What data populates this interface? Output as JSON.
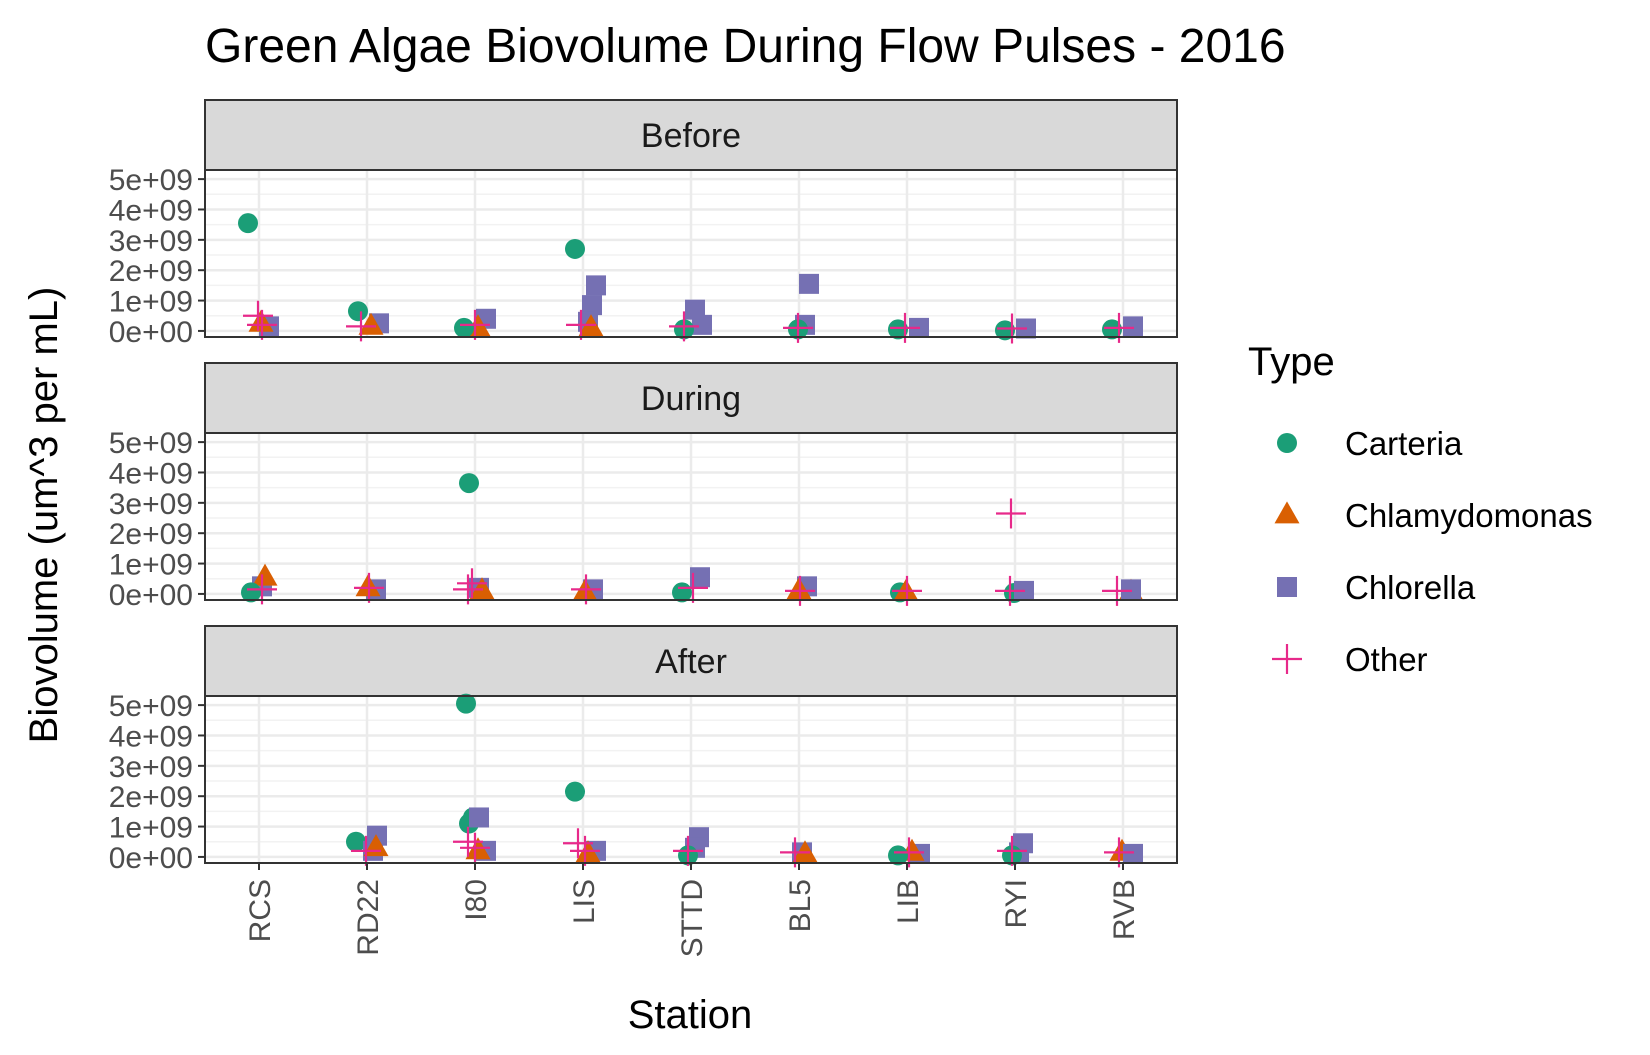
{
  "chart_data": {
    "type": "scatter",
    "title": "Green Algae Biovolume During Flow Pulses - 2016",
    "xlabel": "Station",
    "ylabel": "Biovolume (um^3 per mL)",
    "categories": [
      "RCS",
      "RD22",
      "I80",
      "LIS",
      "STTD",
      "BL5",
      "LIB",
      "RYI",
      "RVB"
    ],
    "ylim": [
      -200000000,
      5300000000
    ],
    "y_ticks": [
      0,
      1000000000,
      2000000000,
      3000000000,
      4000000000,
      5000000000
    ],
    "y_tick_labels": [
      "0e+00",
      "1e+09",
      "2e+09",
      "3e+09",
      "4e+09",
      "5e+09"
    ],
    "grid": true,
    "legend": {
      "title": "Type",
      "position": "right",
      "entries": [
        {
          "name": "Carteria",
          "shape": "circle",
          "color": "#1B9E77"
        },
        {
          "name": "Chlamydomonas",
          "shape": "triangle",
          "color": "#D95F02"
        },
        {
          "name": "Chlorella",
          "shape": "square",
          "color": "#7570B3"
        },
        {
          "name": "Other",
          "shape": "plus",
          "color": "#E7298A"
        }
      ]
    },
    "panels": [
      {
        "label": "Before",
        "points": [
          {
            "station": "RCS",
            "type": "Carteria",
            "value": 3550000000
          },
          {
            "station": "RCS",
            "type": "Chlorella",
            "value": 150000000
          },
          {
            "station": "RCS",
            "type": "Chlamydomonas",
            "value": 250000000
          },
          {
            "station": "RCS",
            "type": "Other",
            "value": 200000000
          },
          {
            "station": "RCS",
            "type": "Other",
            "value": 500000000
          },
          {
            "station": "RD22",
            "type": "Carteria",
            "value": 650000000
          },
          {
            "station": "RD22",
            "type": "Chlorella",
            "value": 250000000
          },
          {
            "station": "RD22",
            "type": "Chlamydomonas",
            "value": 150000000
          },
          {
            "station": "RD22",
            "type": "Other",
            "value": 150000000
          },
          {
            "station": "I80",
            "type": "Chlorella",
            "value": 400000000
          },
          {
            "station": "I80",
            "type": "Chlamydomonas",
            "value": 100000000
          },
          {
            "station": "I80",
            "type": "Carteria",
            "value": 100000000
          },
          {
            "station": "I80",
            "type": "Other",
            "value": 200000000
          },
          {
            "station": "LIS",
            "type": "Carteria",
            "value": 2700000000
          },
          {
            "station": "LIS",
            "type": "Chlorella",
            "value": 1500000000
          },
          {
            "station": "LIS",
            "type": "Chlorella",
            "value": 850000000
          },
          {
            "station": "LIS",
            "type": "Chlorella",
            "value": 300000000
          },
          {
            "station": "LIS",
            "type": "Chlamydomonas",
            "value": 100000000
          },
          {
            "station": "LIS",
            "type": "Other",
            "value": 200000000
          },
          {
            "station": "STTD",
            "type": "Chlorella",
            "value": 700000000
          },
          {
            "station": "STTD",
            "type": "Chlorella",
            "value": 200000000
          },
          {
            "station": "STTD",
            "type": "Carteria",
            "value": 50000000
          },
          {
            "station": "STTD",
            "type": "Other",
            "value": 150000000
          },
          {
            "station": "BL5",
            "type": "Chlorella",
            "value": 1550000000
          },
          {
            "station": "BL5",
            "type": "Chlorella",
            "value": 200000000
          },
          {
            "station": "BL5",
            "type": "Carteria",
            "value": 50000000
          },
          {
            "station": "BL5",
            "type": "Other",
            "value": 100000000
          },
          {
            "station": "LIB",
            "type": "Carteria",
            "value": 50000000
          },
          {
            "station": "LIB",
            "type": "Chlorella",
            "value": 100000000
          },
          {
            "station": "LIB",
            "type": "Other",
            "value": 100000000
          },
          {
            "station": "RYI",
            "type": "Carteria",
            "value": 20000000
          },
          {
            "station": "RYI",
            "type": "Chlorella",
            "value": 80000000
          },
          {
            "station": "RYI",
            "type": "Other",
            "value": 80000000
          },
          {
            "station": "RVB",
            "type": "Carteria",
            "value": 50000000
          },
          {
            "station": "RVB",
            "type": "Chlorella",
            "value": 150000000
          },
          {
            "station": "RVB",
            "type": "Other",
            "value": 100000000
          }
        ]
      },
      {
        "label": "During",
        "points": [
          {
            "station": "RCS",
            "type": "Chlorella",
            "value": 250000000
          },
          {
            "station": "RCS",
            "type": "Chlamydomonas",
            "value": 550000000
          },
          {
            "station": "RCS",
            "type": "Carteria",
            "value": 50000000
          },
          {
            "station": "RCS",
            "type": "Other",
            "value": 150000000
          },
          {
            "station": "RD22",
            "type": "Chlorella",
            "value": 150000000
          },
          {
            "station": "RD22",
            "type": "Chlamydomonas",
            "value": 200000000
          },
          {
            "station": "RD22",
            "type": "Other",
            "value": 200000000
          },
          {
            "station": "I80",
            "type": "Carteria",
            "value": 3650000000
          },
          {
            "station": "I80",
            "type": "Chlorella",
            "value": 200000000
          },
          {
            "station": "I80",
            "type": "Chlamydomonas",
            "value": 100000000
          },
          {
            "station": "I80",
            "type": "Other",
            "value": 350000000
          },
          {
            "station": "I80",
            "type": "Other",
            "value": 150000000
          },
          {
            "station": "LIS",
            "type": "Chlorella",
            "value": 150000000
          },
          {
            "station": "LIS",
            "type": "Chlamydomonas",
            "value": 50000000
          },
          {
            "station": "LIS",
            "type": "Other",
            "value": 150000000
          },
          {
            "station": "STTD",
            "type": "Chlorella",
            "value": 550000000
          },
          {
            "station": "STTD",
            "type": "Carteria",
            "value": 50000000
          },
          {
            "station": "STTD",
            "type": "Other",
            "value": 200000000
          },
          {
            "station": "BL5",
            "type": "Chlorella",
            "value": 250000000
          },
          {
            "station": "BL5",
            "type": "Chlamydomonas",
            "value": 100000000
          },
          {
            "station": "BL5",
            "type": "Other",
            "value": 100000000
          },
          {
            "station": "LIB",
            "type": "Carteria",
            "value": 50000000
          },
          {
            "station": "LIB",
            "type": "Chlamydomonas",
            "value": 50000000
          },
          {
            "station": "LIB",
            "type": "Other",
            "value": 100000000
          },
          {
            "station": "RYI",
            "type": "Other",
            "value": 2650000000
          },
          {
            "station": "RYI",
            "type": "Carteria",
            "value": 30000000
          },
          {
            "station": "RYI",
            "type": "Chlorella",
            "value": 100000000
          },
          {
            "station": "RYI",
            "type": "Other",
            "value": 100000000
          },
          {
            "station": "RVB",
            "type": "Chlamydomonas",
            "value": 50000000
          },
          {
            "station": "RVB",
            "type": "Chlorella",
            "value": 150000000
          },
          {
            "station": "RVB",
            "type": "Other",
            "value": 100000000
          }
        ]
      },
      {
        "label": "After",
        "points": [
          {
            "station": "RD22",
            "type": "Carteria",
            "value": 500000000
          },
          {
            "station": "RD22",
            "type": "Chlorella",
            "value": 700000000
          },
          {
            "station": "RD22",
            "type": "Chlorella",
            "value": 200000000
          },
          {
            "station": "RD22",
            "type": "Chlamydomonas",
            "value": 300000000
          },
          {
            "station": "RD22",
            "type": "Other",
            "value": 200000000
          },
          {
            "station": "I80",
            "type": "Carteria",
            "value": 5050000000
          },
          {
            "station": "I80",
            "type": "Carteria",
            "value": 1300000000
          },
          {
            "station": "I80",
            "type": "Carteria",
            "value": 1100000000
          },
          {
            "station": "I80",
            "type": "Chlorella",
            "value": 1300000000
          },
          {
            "station": "I80",
            "type": "Chlorella",
            "value": 200000000
          },
          {
            "station": "I80",
            "type": "Chlamydomonas",
            "value": 200000000
          },
          {
            "station": "I80",
            "type": "Other",
            "value": 500000000
          },
          {
            "station": "I80",
            "type": "Other",
            "value": 300000000
          },
          {
            "station": "LIS",
            "type": "Carteria",
            "value": 2150000000
          },
          {
            "station": "LIS",
            "type": "Chlorella",
            "value": 200000000
          },
          {
            "station": "LIS",
            "type": "Chlamydomonas",
            "value": 100000000
          },
          {
            "station": "LIS",
            "type": "Other",
            "value": 450000000
          },
          {
            "station": "LIS",
            "type": "Other",
            "value": 200000000
          },
          {
            "station": "STTD",
            "type": "Chlorella",
            "value": 650000000
          },
          {
            "station": "STTD",
            "type": "Chlorella",
            "value": 300000000
          },
          {
            "station": "STTD",
            "type": "Carteria",
            "value": 50000000
          },
          {
            "station": "STTD",
            "type": "Other",
            "value": 200000000
          },
          {
            "station": "BL5",
            "type": "Chlorella",
            "value": 150000000
          },
          {
            "station": "BL5",
            "type": "Chlamydomonas",
            "value": 100000000
          },
          {
            "station": "BL5",
            "type": "Other",
            "value": 150000000
          },
          {
            "station": "LIB",
            "type": "Chlorella",
            "value": 100000000
          },
          {
            "station": "LIB",
            "type": "Chlamydomonas",
            "value": 150000000
          },
          {
            "station": "LIB",
            "type": "Carteria",
            "value": 50000000
          },
          {
            "station": "LIB",
            "type": "Other",
            "value": 150000000
          },
          {
            "station": "RYI",
            "type": "Chlorella",
            "value": 450000000
          },
          {
            "station": "RYI",
            "type": "Chlorella",
            "value": 150000000
          },
          {
            "station": "RYI",
            "type": "Carteria",
            "value": 50000000
          },
          {
            "station": "RYI",
            "type": "Other",
            "value": 200000000
          },
          {
            "station": "RVB",
            "type": "Chlamydomonas",
            "value": 150000000
          },
          {
            "station": "RVB",
            "type": "Chlorella",
            "value": 100000000
          },
          {
            "station": "RVB",
            "type": "Other",
            "value": 150000000
          }
        ]
      }
    ]
  }
}
